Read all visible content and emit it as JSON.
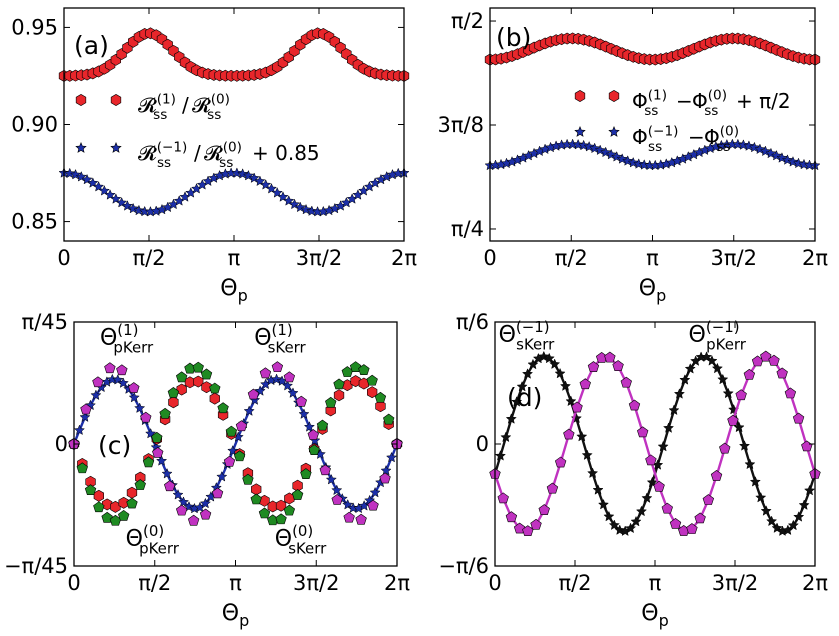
{
  "figure": {
    "description_free": true
  },
  "chart_data": [
    {
      "panel": "a",
      "type": "scatter",
      "label": "(a)",
      "xlabel": "Θ_p",
      "ylabel": "",
      "xlim": [
        0,
        6.2832
      ],
      "ylim": [
        0.84,
        0.96
      ],
      "xticks": [
        {
          "v": 0,
          "label": "0"
        },
        {
          "v": 1.5708,
          "label": "π/2"
        },
        {
          "v": 3.1416,
          "label": "π"
        },
        {
          "v": 4.7124,
          "label": "3π/2"
        },
        {
          "v": 6.2832,
          "label": "2π"
        }
      ],
      "yticks": [
        {
          "v": 0.85,
          "label": "0.85"
        },
        {
          "v": 0.9,
          "label": "0.90"
        },
        {
          "v": 0.95,
          "label": "0.95"
        }
      ],
      "legend_position": "center-left",
      "series": [
        {
          "name": "R_ss^(1)/R_ss^(0)",
          "legend": "𝓡ss(1)/𝓡ss(0)",
          "marker": "hexagon",
          "color": "#e8262b",
          "shape": "bump",
          "base": 0.925,
          "amp": 0.022,
          "centers": [
            1.5708,
            4.7124
          ],
          "width": 0.62,
          "n": 60
        },
        {
          "name": "R_ss^(-1)/R_ss^(0) + 0.85",
          "legend": "𝓡ss(−1)/𝓡ss(0) + 0.85",
          "marker": "star",
          "color": "#1c2fa8",
          "shape": "cos2",
          "mean": 0.865,
          "amp": 0.01,
          "n": 60
        }
      ]
    },
    {
      "panel": "b",
      "type": "scatter",
      "label": "(b)",
      "xlabel": "Θ_p",
      "xlim": [
        0,
        6.2832
      ],
      "ylim": [
        0.74,
        1.62
      ],
      "xticks": [
        {
          "v": 0,
          "label": "0"
        },
        {
          "v": 1.5708,
          "label": "π/2"
        },
        {
          "v": 3.1416,
          "label": "π"
        },
        {
          "v": 4.7124,
          "label": "3π/2"
        },
        {
          "v": 6.2832,
          "label": "2π"
        }
      ],
      "yticks": [
        {
          "v": 0.7854,
          "label": "π/4"
        },
        {
          "v": 1.1781,
          "label": "3π/8"
        },
        {
          "v": 1.5708,
          "label": "π/2"
        }
      ],
      "legend_position": "center-right",
      "series": [
        {
          "name": "Phi_ss^(1) - Phi_ss^(0) + pi/2",
          "legend": "Φss(1) − Φss(0) + π/2",
          "marker": "hexagon",
          "color": "#e8262b",
          "shape": "cos2neg",
          "mean": 1.465,
          "amp": 0.04,
          "n": 60
        },
        {
          "name": "Phi_ss^(-1) - Phi_ss^(0)",
          "legend": "Φss(−1) − Φss(0)",
          "marker": "star",
          "color": "#1c2fa8",
          "shape": "cos2neg",
          "mean": 1.065,
          "amp": 0.04,
          "n": 60
        }
      ]
    },
    {
      "panel": "c",
      "type": "line",
      "label": "(c)",
      "xlabel": "Θ_p",
      "xlim": [
        0,
        6.2832
      ],
      "ylim": [
        -0.0698,
        0.0698
      ],
      "xticks": [
        {
          "v": 0,
          "label": "0"
        },
        {
          "v": 1.5708,
          "label": "π/2"
        },
        {
          "v": 3.1416,
          "label": "π"
        },
        {
          "v": 4.7124,
          "label": "3π/2"
        },
        {
          "v": 6.2832,
          "label": "2π"
        }
      ],
      "yticks": [
        {
          "v": -0.0698,
          "label": "−π/45"
        },
        {
          "v": 0,
          "label": "0"
        },
        {
          "v": 0.0698,
          "label": "π/45"
        }
      ],
      "series": [
        {
          "name": "Theta_pKerr^(0)",
          "marker": "star",
          "color": "#1c2fa8",
          "shape": "sin2",
          "amp": 0.037,
          "n": 60,
          "line": true
        },
        {
          "name": "Theta_sKerr^(0)",
          "marker": "hexagon",
          "color": "#e8262b",
          "shape": "sin2",
          "amp": -0.036,
          "n": 40,
          "line": false
        },
        {
          "name": "Theta_sKerr^(1)",
          "marker": "pentagon",
          "color": "#1f8a22",
          "shape": "sin2",
          "amp": -0.044,
          "n": 40,
          "line": false
        },
        {
          "name": "Theta_pKerr^(1)",
          "marker": "pentagon",
          "color": "#c032c0",
          "shape": "sin2",
          "amp": 0.044,
          "n": 28,
          "line": false
        }
      ],
      "annotations": [
        {
          "text_main": "Θ",
          "sup": "(1)",
          "sub": "pKerr",
          "color": "#c032c0",
          "at": [
            1.05,
            0.057
          ]
        },
        {
          "text_main": "Θ",
          "sup": "(1)",
          "sub": "sKerr",
          "color": "#1f8a22",
          "at": [
            4.05,
            0.057
          ]
        },
        {
          "text_main": "Θ",
          "sup": "(0)",
          "sub": "pKerr",
          "color": "#1c2fa8",
          "at": [
            1.55,
            -0.058
          ]
        },
        {
          "text_main": "Θ",
          "sup": "(0)",
          "sub": "sKerr",
          "color": "#e8262b",
          "at": [
            4.45,
            -0.058
          ]
        }
      ]
    },
    {
      "panel": "d",
      "type": "line",
      "label": "(d)",
      "xlabel": "Θ_p",
      "xlim": [
        0,
        6.2832
      ],
      "ylim": [
        -0.5236,
        0.5236
      ],
      "xticks": [
        {
          "v": 0,
          "label": "0"
        },
        {
          "v": 1.5708,
          "label": "π/2"
        },
        {
          "v": 3.1416,
          "label": "π"
        },
        {
          "v": 4.7124,
          "label": "3π/2"
        },
        {
          "v": 6.2832,
          "label": "2π"
        }
      ],
      "yticks": [
        {
          "v": -0.5236,
          "label": "−π/6"
        },
        {
          "v": 0,
          "label": "0"
        },
        {
          "v": 0.5236,
          "label": "π/6"
        }
      ],
      "series": [
        {
          "name": "Theta_sKerr^(-1)",
          "marker": "star",
          "color": "#111111",
          "shape": "sinPhase",
          "amp": 0.375,
          "phase": -0.35,
          "n": 60,
          "line": true
        },
        {
          "name": "Theta_pKerr^(-1)",
          "marker": "pentagon",
          "color": "#c032c0",
          "shape": "sinPhase",
          "amp": -0.375,
          "phase": 0.35,
          "n": 40,
          "line": true
        }
      ],
      "annotations": [
        {
          "text_main": "Θ",
          "sup": "(−1)",
          "sub": "sKerr",
          "color": "#111111",
          "at": [
            0.62,
            0.44
          ]
        },
        {
          "text_main": "Θ",
          "sup": "(−1)",
          "sub": "pKerr",
          "color": "#c032c0",
          "at": [
            4.35,
            0.44
          ]
        }
      ]
    }
  ]
}
